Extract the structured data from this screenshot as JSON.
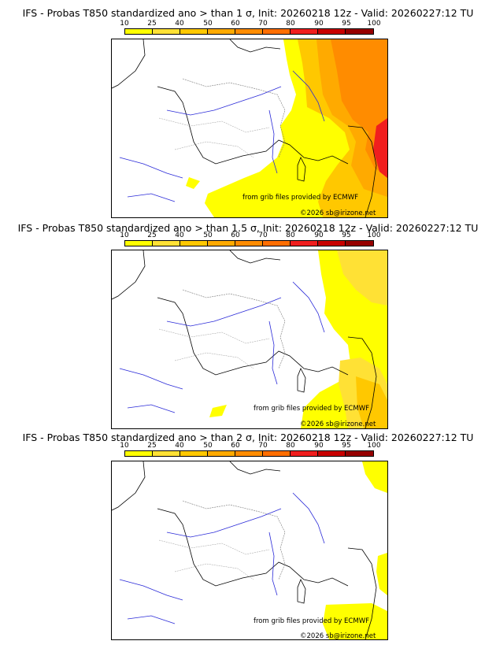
{
  "colorbar": {
    "ticks": [
      "10",
      "25",
      "40",
      "50",
      "60",
      "70",
      "80",
      "90",
      "95",
      "100"
    ],
    "colors": [
      "#ffff00",
      "#ffe135",
      "#ffc800",
      "#ffaa00",
      "#ff8c00",
      "#ff6e00",
      "#f01e1e",
      "#c80000",
      "#960000"
    ]
  },
  "credits": {
    "source": "from grib files provided by ECMWF",
    "copyright": "©2026 sb@irizone.net"
  },
  "panels": [
    {
      "title": "IFS - Probas T850  standardized ano > than 1 σ, Init: 20260218 12z - Valid: 20260227:12 TU",
      "threshold_sigma": 1
    },
    {
      "title": "IFS - Probas T850  standardized ano > than 1.5 σ, Init: 20260218 12z - Valid: 20260227:12 TU",
      "threshold_sigma": 1.5
    },
    {
      "title": "IFS - Probas T850  standardized ano > than 2 σ, Init: 20260218 12z - Valid: 20260227:12 TU",
      "threshold_sigma": 2
    }
  ]
}
